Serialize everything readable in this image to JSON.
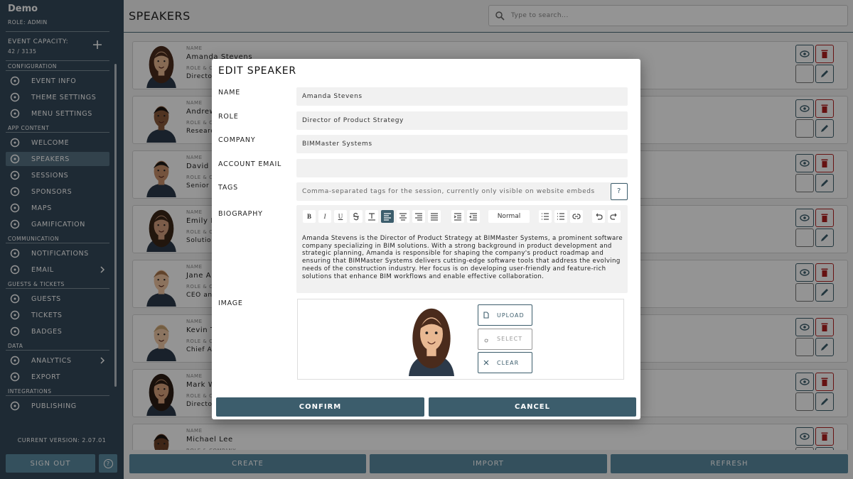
{
  "sidebar": {
    "app_name": "Demo",
    "role": "ROLE: ADMIN",
    "capacity_label": "EVENT CAPACITY:",
    "capacity_value": "42 / 3135",
    "sections": [
      {
        "title": "CONFIGURATION",
        "items": [
          {
            "label": "EVENT INFO"
          },
          {
            "label": "THEME SETTINGS"
          },
          {
            "label": "MENU SETTINGS"
          }
        ]
      },
      {
        "title": "APP CONTENT",
        "items": [
          {
            "label": "WELCOME"
          },
          {
            "label": "SPEAKERS",
            "active": true
          },
          {
            "label": "SESSIONS"
          },
          {
            "label": "SPONSORS"
          },
          {
            "label": "MAPS"
          },
          {
            "label": "GAMIFICATION"
          }
        ]
      },
      {
        "title": "COMMUNICATION",
        "items": [
          {
            "label": "NOTIFICATIONS"
          },
          {
            "label": "EMAIL",
            "submenu": true
          }
        ]
      },
      {
        "title": "GUESTS & TICKETS",
        "items": [
          {
            "label": "GUESTS"
          },
          {
            "label": "TICKETS"
          },
          {
            "label": "BADGES"
          }
        ]
      },
      {
        "title": "DATA",
        "items": [
          {
            "label": "ANALYTICS",
            "submenu": true
          },
          {
            "label": "EXPORT"
          }
        ]
      },
      {
        "title": "INTEGRATIONS",
        "items": [
          {
            "label": "PUBLISHING"
          }
        ]
      }
    ],
    "version": "CURRENT VERSION: 2.07.01",
    "sign_out": "SIGN OUT",
    "help": "?"
  },
  "header": {
    "title": "SPEAKERS",
    "search_placeholder": "Type to search..."
  },
  "list": {
    "name_label": "NAME",
    "role_label": "ROLE & COMPANY",
    "speakers": [
      {
        "name": "Amanda Stevens",
        "role": "Director"
      },
      {
        "name": "Andrew",
        "role": "Research"
      },
      {
        "name": "David",
        "role": "Senior"
      },
      {
        "name": "Emily D",
        "role": "Solution"
      },
      {
        "name": "Jane A",
        "role": "CEO and"
      },
      {
        "name": "Kevin T",
        "role": "Chief A"
      },
      {
        "name": "Mark W",
        "role": "Director"
      },
      {
        "name": "Michael Lee"
      }
    ]
  },
  "modal": {
    "title": "EDIT SPEAKER",
    "fields": [
      {
        "label": "NAME",
        "value": "Amanda Stevens"
      },
      {
        "label": "ROLE",
        "value": "Director of Product Strategy"
      },
      {
        "label": "COMPANY",
        "value": "BIMMaster Systems"
      },
      {
        "label": "ACCOUNT EMAIL"
      },
      {
        "label": "TAGS",
        "placeholder": "Comma-separated tags for the session, currently only visible on website embeds",
        "help": "?"
      }
    ],
    "biography": {
      "label": "BIOGRAPHY",
      "toolbar": [
        "B",
        "I",
        "U"
      ],
      "format": "Normal",
      "text": "Amanda Stevens is the Director of Product Strategy at BIMMaster Systems, a prominent software company specializing in BIM solutions. With a strong background in product development and strategic planning, Amanda is responsible for shaping the company's product roadmap and ensuring that BIMMaster Systems delivers cutting-edge software tools that address the evolving needs of the construction industry. Her focus is on developing user-friendly and feature-rich solutions that enhance BIM workflows and enable effective collaboration."
    },
    "image": {
      "label": "IMAGE",
      "buttons": [
        "UPLOAD",
        "SELECT",
        "CLEAR"
      ]
    },
    "confirm": "CONFIRM",
    "cancel": "CANCEL"
  },
  "footer": {
    "buttons": [
      "CREATE",
      "IMPORT",
      "REFRESH"
    ]
  }
}
